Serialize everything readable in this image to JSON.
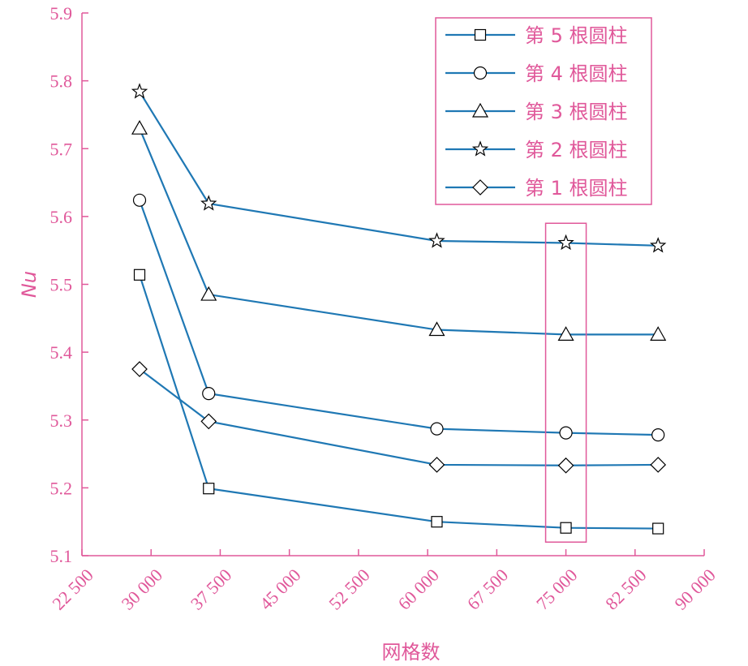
{
  "colors": {
    "axis": "#e0589a",
    "line": "#1f78b4",
    "marker_stroke": "#000000",
    "marker_fill": "#ffffff"
  },
  "chart_data": {
    "type": "line",
    "xlabel": "网格数",
    "ylabel": "Nu",
    "xlim": [
      22500,
      90000
    ],
    "ylim": [
      5.1,
      5.9
    ],
    "xticks": [
      22500,
      30000,
      37500,
      45000,
      52500,
      60000,
      67500,
      75000,
      82500,
      90000
    ],
    "xtick_labels": [
      "22 500",
      "30 000",
      "37 500",
      "45 000",
      "52 500",
      "60 000",
      "67 500",
      "75 000",
      "82 500",
      "90 000"
    ],
    "yticks": [
      5.1,
      5.2,
      5.3,
      5.4,
      5.5,
      5.6,
      5.7,
      5.8,
      5.9
    ],
    "ytick_labels": [
      "5.1",
      "5.2",
      "5.3",
      "5.4",
      "5.5",
      "5.6",
      "5.7",
      "5.8",
      "5.9"
    ],
    "x": [
      28750,
      36250,
      61000,
      75000,
      85000
    ],
    "legend": "top-right",
    "series": [
      {
        "name": "第 5 根圆柱",
        "marker": "square",
        "values": [
          5.514,
          5.199,
          5.15,
          5.141,
          5.14
        ]
      },
      {
        "name": "第 4 根圆柱",
        "marker": "circle",
        "values": [
          5.624,
          5.339,
          5.287,
          5.281,
          5.278
        ]
      },
      {
        "name": "第 3 根圆柱",
        "marker": "triangle",
        "values": [
          5.73,
          5.485,
          5.433,
          5.426,
          5.426
        ]
      },
      {
        "name": "第 2 根圆柱",
        "marker": "star",
        "values": [
          5.784,
          5.619,
          5.564,
          5.561,
          5.557
        ]
      },
      {
        "name": "第 1 根圆柱",
        "marker": "diamond",
        "values": [
          5.375,
          5.298,
          5.234,
          5.233,
          5.234
        ]
      }
    ],
    "highlight_box": {
      "x_range": [
        72800,
        77200
      ],
      "y_range": [
        5.12,
        5.59
      ]
    }
  }
}
